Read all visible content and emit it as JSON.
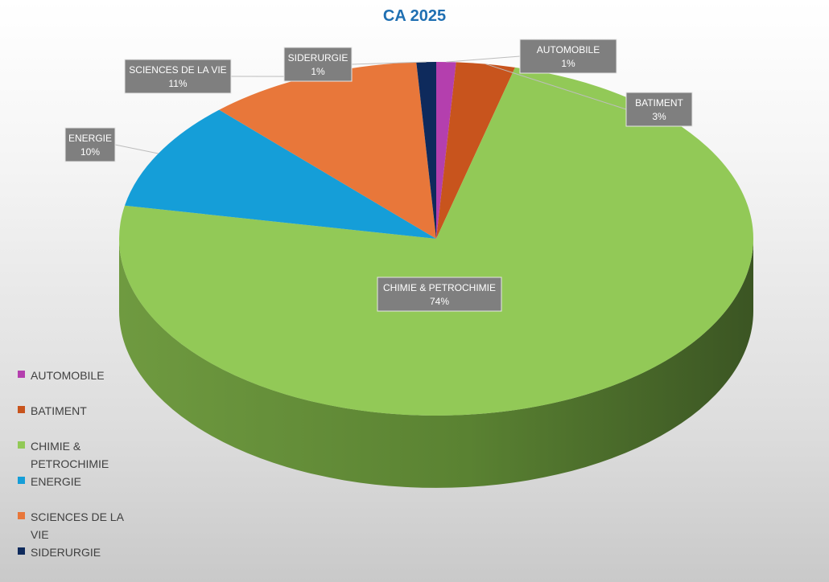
{
  "chart_data": {
    "type": "pie",
    "title": "CA 2025",
    "legend_position": "bottom-left",
    "labels": [
      "AUTOMOBILE",
      "BATIMENT",
      "CHIMIE & PETROCHIMIE",
      "ENERGIE",
      "SCIENCES DE LA VIE",
      "SIDERURGIE"
    ],
    "values": [
      1,
      3,
      74,
      10,
      11,
      1
    ],
    "data_labels": [
      "1%",
      "3%",
      "74%",
      "10%",
      "11%",
      "1%"
    ],
    "colors": [
      "#b43fae",
      "#c8541d",
      "#92c957",
      "#159ed8",
      "#e8773a",
      "#0e2a5c"
    ],
    "legend_labels": [
      "AUTOMOBILE",
      "BATIMENT",
      "CHIMIE & PETROCHIMIE",
      "ENERGIE",
      "SCIENCES DE LA VIE",
      "SIDERURGIE"
    ]
  }
}
